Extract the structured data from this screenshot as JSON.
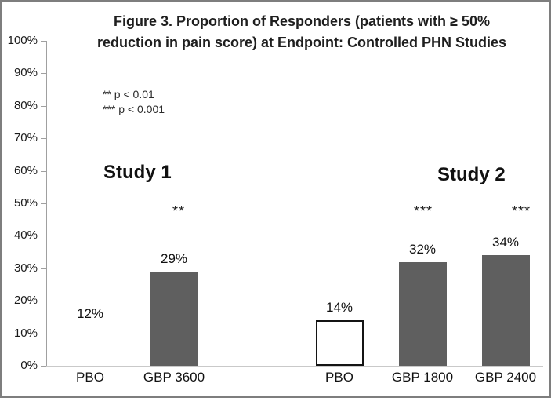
{
  "figure": {
    "title_line1": "Figure 3. Proportion of Responders (patients with ≥ 50%",
    "title_line2": "reduction in pain score) at Endpoint: Controlled PHN Studies"
  },
  "chart_data": {
    "type": "bar",
    "title": "Figure 3. Proportion of Responders (patients with ≥ 50% reduction in pain score) at Endpoint: Controlled PHN Studies",
    "xlabel": "",
    "ylabel": "",
    "ylim": [
      0,
      100
    ],
    "ytick_labels": [
      "0%",
      "10%",
      "20%",
      "30%",
      "40%",
      "50%",
      "60%",
      "70%",
      "80%",
      "90%",
      "100%"
    ],
    "grid": false,
    "legend_position": "none",
    "annotations": [
      "** p < 0.01",
      "*** p < 0.001"
    ],
    "groups": [
      {
        "label": "Study 1",
        "bars": [
          {
            "category": "PBO",
            "value": 12,
            "value_label": "12%",
            "significance": "",
            "fill": "#ffffff",
            "border_color": "#4a4a4a",
            "border_width": 1
          },
          {
            "category": "GBP 3600",
            "value": 29,
            "value_label": "29%",
            "significance": "**",
            "fill": "#5f5f5f",
            "border_color": "",
            "border_width": 0
          }
        ]
      },
      {
        "label": "Study 2",
        "bars": [
          {
            "category": "PBO",
            "value": 14,
            "value_label": "14%",
            "significance": "",
            "fill": "#ffffff",
            "border_color": "#141414",
            "border_width": 2
          },
          {
            "category": "GBP 1800",
            "value": 32,
            "value_label": "32%",
            "significance": "***",
            "fill": "#5f5f5f",
            "border_color": "",
            "border_width": 0
          },
          {
            "category": "GBP 2400",
            "value": 34,
            "value_label": "34%",
            "significance": "***",
            "fill": "#5f5f5f",
            "border_color": "",
            "border_width": 0
          }
        ]
      }
    ],
    "colors": {
      "bar_gray": "#5f5f5f",
      "pbo_fill": "#ffffff",
      "axis_line": "#a0a0a0",
      "baseline": "#c9c9c9",
      "text": "#1a1a1a"
    }
  }
}
